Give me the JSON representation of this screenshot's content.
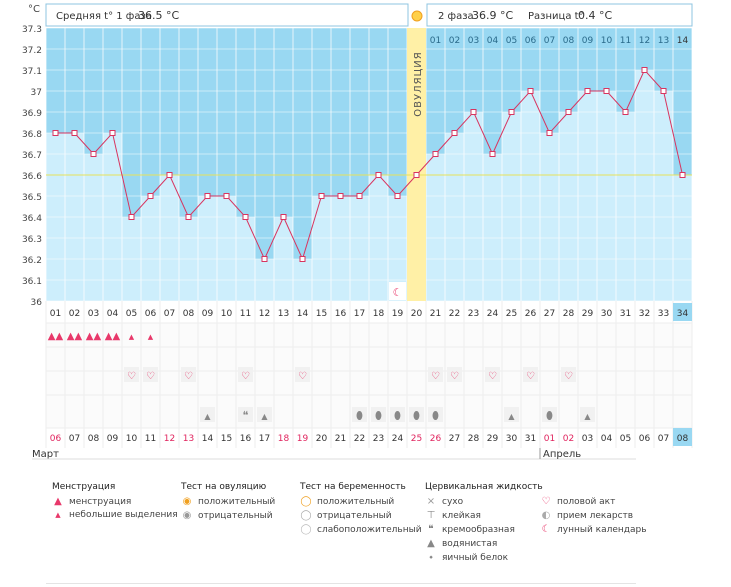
{
  "chart_data": {
    "type": "line",
    "y_unit_label": "°C",
    "ylim": [
      36.0,
      37.3
    ],
    "y_ticks": [
      "36",
      "36.1",
      "36.2",
      "36.3",
      "36.4",
      "36.5",
      "36.6",
      "36.7",
      "36.8",
      "36.9",
      "37",
      "37.1",
      "37.2",
      "37.3"
    ],
    "coverline": 36.6,
    "ovulation_day": 20,
    "ovulation_label": "ОВУЛЯЦИЯ",
    "phase1_label": "Средняя t° 1 фаза",
    "phase1_value": "36.5 °C",
    "phase2_label": "2 фаза",
    "phase2_value": "36.9 °C",
    "diff_label": "Разница t°",
    "diff_value": "0.4 °C",
    "cycle_days": [
      "01",
      "02",
      "03",
      "04",
      "05",
      "06",
      "07",
      "08",
      "09",
      "10",
      "11",
      "12",
      "13",
      "14",
      "15",
      "16",
      "17",
      "18",
      "19",
      "20",
      "21",
      "22",
      "23",
      "24",
      "25",
      "26",
      "27",
      "28",
      "29",
      "30",
      "31",
      "32",
      "33",
      "34"
    ],
    "post_ovulation_days": [
      "01",
      "02",
      "03",
      "04",
      "05",
      "06",
      "07",
      "08",
      "09",
      "10",
      "11",
      "12",
      "13",
      "14"
    ],
    "temperatures": [
      36.8,
      36.8,
      36.7,
      36.8,
      36.4,
      36.5,
      36.6,
      36.4,
      36.5,
      36.5,
      36.4,
      36.2,
      36.4,
      36.2,
      36.5,
      36.5,
      36.5,
      36.6,
      36.5,
      36.6,
      36.7,
      36.8,
      36.9,
      36.7,
      36.9,
      37.0,
      36.8,
      36.9,
      37.0,
      37.0,
      36.9,
      37.1,
      37.0,
      36.6
    ],
    "today_day": 34,
    "dates": [
      "06",
      "07",
      "08",
      "09",
      "10",
      "11",
      "12",
      "13",
      "14",
      "15",
      "16",
      "17",
      "18",
      "19",
      "20",
      "21",
      "22",
      "23",
      "24",
      "25",
      "26",
      "27",
      "28",
      "29",
      "30",
      "31",
      "01",
      "02",
      "03",
      "04",
      "05",
      "06",
      "07",
      "08"
    ],
    "highlighted_dates": [
      1,
      7,
      8,
      13,
      14,
      20,
      21,
      27,
      28
    ],
    "month_start": "Март",
    "month_second": "Апрель",
    "month_second_day": 27,
    "menstruation": [
      {
        "day": 1,
        "kind": "menstruation"
      },
      {
        "day": 2,
        "kind": "menstruation"
      },
      {
        "day": 3,
        "kind": "menstruation"
      },
      {
        "day": 4,
        "kind": "menstruation"
      },
      {
        "day": 5,
        "kind": "spotting"
      },
      {
        "day": 6,
        "kind": "spotting"
      }
    ],
    "intercourse_days": [
      5,
      6,
      8,
      11,
      14,
      21,
      22,
      24,
      26,
      28
    ],
    "fluid": [
      {
        "day": 9,
        "kind": "watery"
      },
      {
        "day": 11,
        "kind": "creamy"
      },
      {
        "day": 12,
        "kind": "watery"
      },
      {
        "day": 17,
        "kind": "egg-white"
      },
      {
        "day": 18,
        "kind": "egg-white"
      },
      {
        "day": 19,
        "kind": "egg-white"
      },
      {
        "day": 20,
        "kind": "egg-white"
      },
      {
        "day": 21,
        "kind": "egg-white"
      },
      {
        "day": 25,
        "kind": "watery"
      },
      {
        "day": 27,
        "kind": "egg-white"
      },
      {
        "day": 29,
        "kind": "watery"
      }
    ],
    "lunar_days": [
      19
    ]
  },
  "legend": {
    "menstruation": {
      "title": "Менструация",
      "items": [
        {
          "icon": "menstruation-icon",
          "label": "менструация"
        },
        {
          "icon": "spotting-icon",
          "label": "небольшие выделения"
        }
      ]
    },
    "ovulation_test": {
      "title": "Тест на овуляцию",
      "items": [
        {
          "icon": "positive-test-icon",
          "label": "положительный"
        },
        {
          "icon": "negative-test-icon",
          "label": "отрицательный"
        }
      ]
    },
    "pregnancy_test": {
      "title": "Тест на беременность",
      "items": [
        {
          "icon": "pregnancy-positive-icon",
          "label": "положительный"
        },
        {
          "icon": "pregnancy-negative-icon",
          "label": "отрицательный"
        },
        {
          "icon": "pregnancy-weak-icon",
          "label": "слабоположительный"
        }
      ]
    },
    "cervical_fluid": {
      "title": "Цервикальная жидкость",
      "items": [
        {
          "icon": "dry-icon",
          "label": "сухо"
        },
        {
          "icon": "sticky-icon",
          "label": "клейкая"
        },
        {
          "icon": "creamy-icon",
          "label": "кремообразная"
        },
        {
          "icon": "watery-icon",
          "label": "водянистая"
        },
        {
          "icon": "egg-white-icon",
          "label": "яичный белок"
        }
      ]
    },
    "other": {
      "items": [
        {
          "icon": "heart-icon",
          "label": "половой акт"
        },
        {
          "icon": "medicine-icon",
          "label": "прием лекарств"
        },
        {
          "icon": "moon-icon",
          "label": "лунный календарь"
        }
      ]
    }
  }
}
